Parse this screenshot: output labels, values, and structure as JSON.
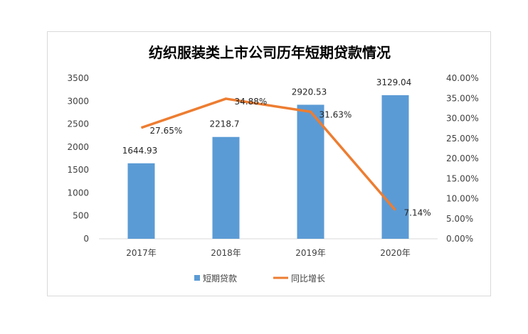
{
  "chart_data": {
    "type": "bar",
    "title": "纺织服装类上市公司历年短期贷款情况",
    "categories": [
      "2017年",
      "2018年",
      "2019年",
      "2020年"
    ],
    "series": [
      {
        "name": "短期贷款",
        "type": "bar",
        "axis": "left",
        "values": [
          1644.93,
          2218.7,
          2920.53,
          3129.04
        ],
        "labels": [
          "1644.93",
          "2218.7",
          "2920.53",
          "3129.04"
        ],
        "color": "#5b9bd5"
      },
      {
        "name": "同比增长",
        "type": "line",
        "axis": "right",
        "values": [
          27.65,
          34.88,
          31.63,
          7.14
        ],
        "labels": [
          "27.65%",
          "34.88%",
          "31.63%",
          "7.14%"
        ],
        "color": "#ed7d31"
      }
    ],
    "left_axis": {
      "min": 0,
      "max": 3500,
      "step": 500,
      "tick_labels": [
        "0",
        "500",
        "1000",
        "1500",
        "2000",
        "2500",
        "3000",
        "3500"
      ]
    },
    "right_axis": {
      "min": 0,
      "max": 40,
      "step": 5,
      "tick_labels": [
        "0.00%",
        "5.00%",
        "10.00%",
        "15.00%",
        "20.00%",
        "25.00%",
        "30.00%",
        "35.00%",
        "40.00%"
      ]
    },
    "grid": false,
    "legend_position": "bottom"
  }
}
